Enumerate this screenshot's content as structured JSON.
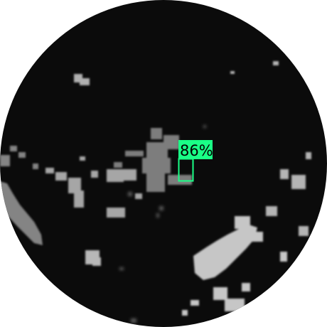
{
  "detection": {
    "confidence_label": "86%",
    "box_color": "#1aff86",
    "label_bg_color": "#1aff86",
    "label_text_color": "#000000"
  },
  "scope": {
    "background_color": "#0b0b0b",
    "outside_color": "#ffffff",
    "echo_color": "#a8a8a8"
  }
}
